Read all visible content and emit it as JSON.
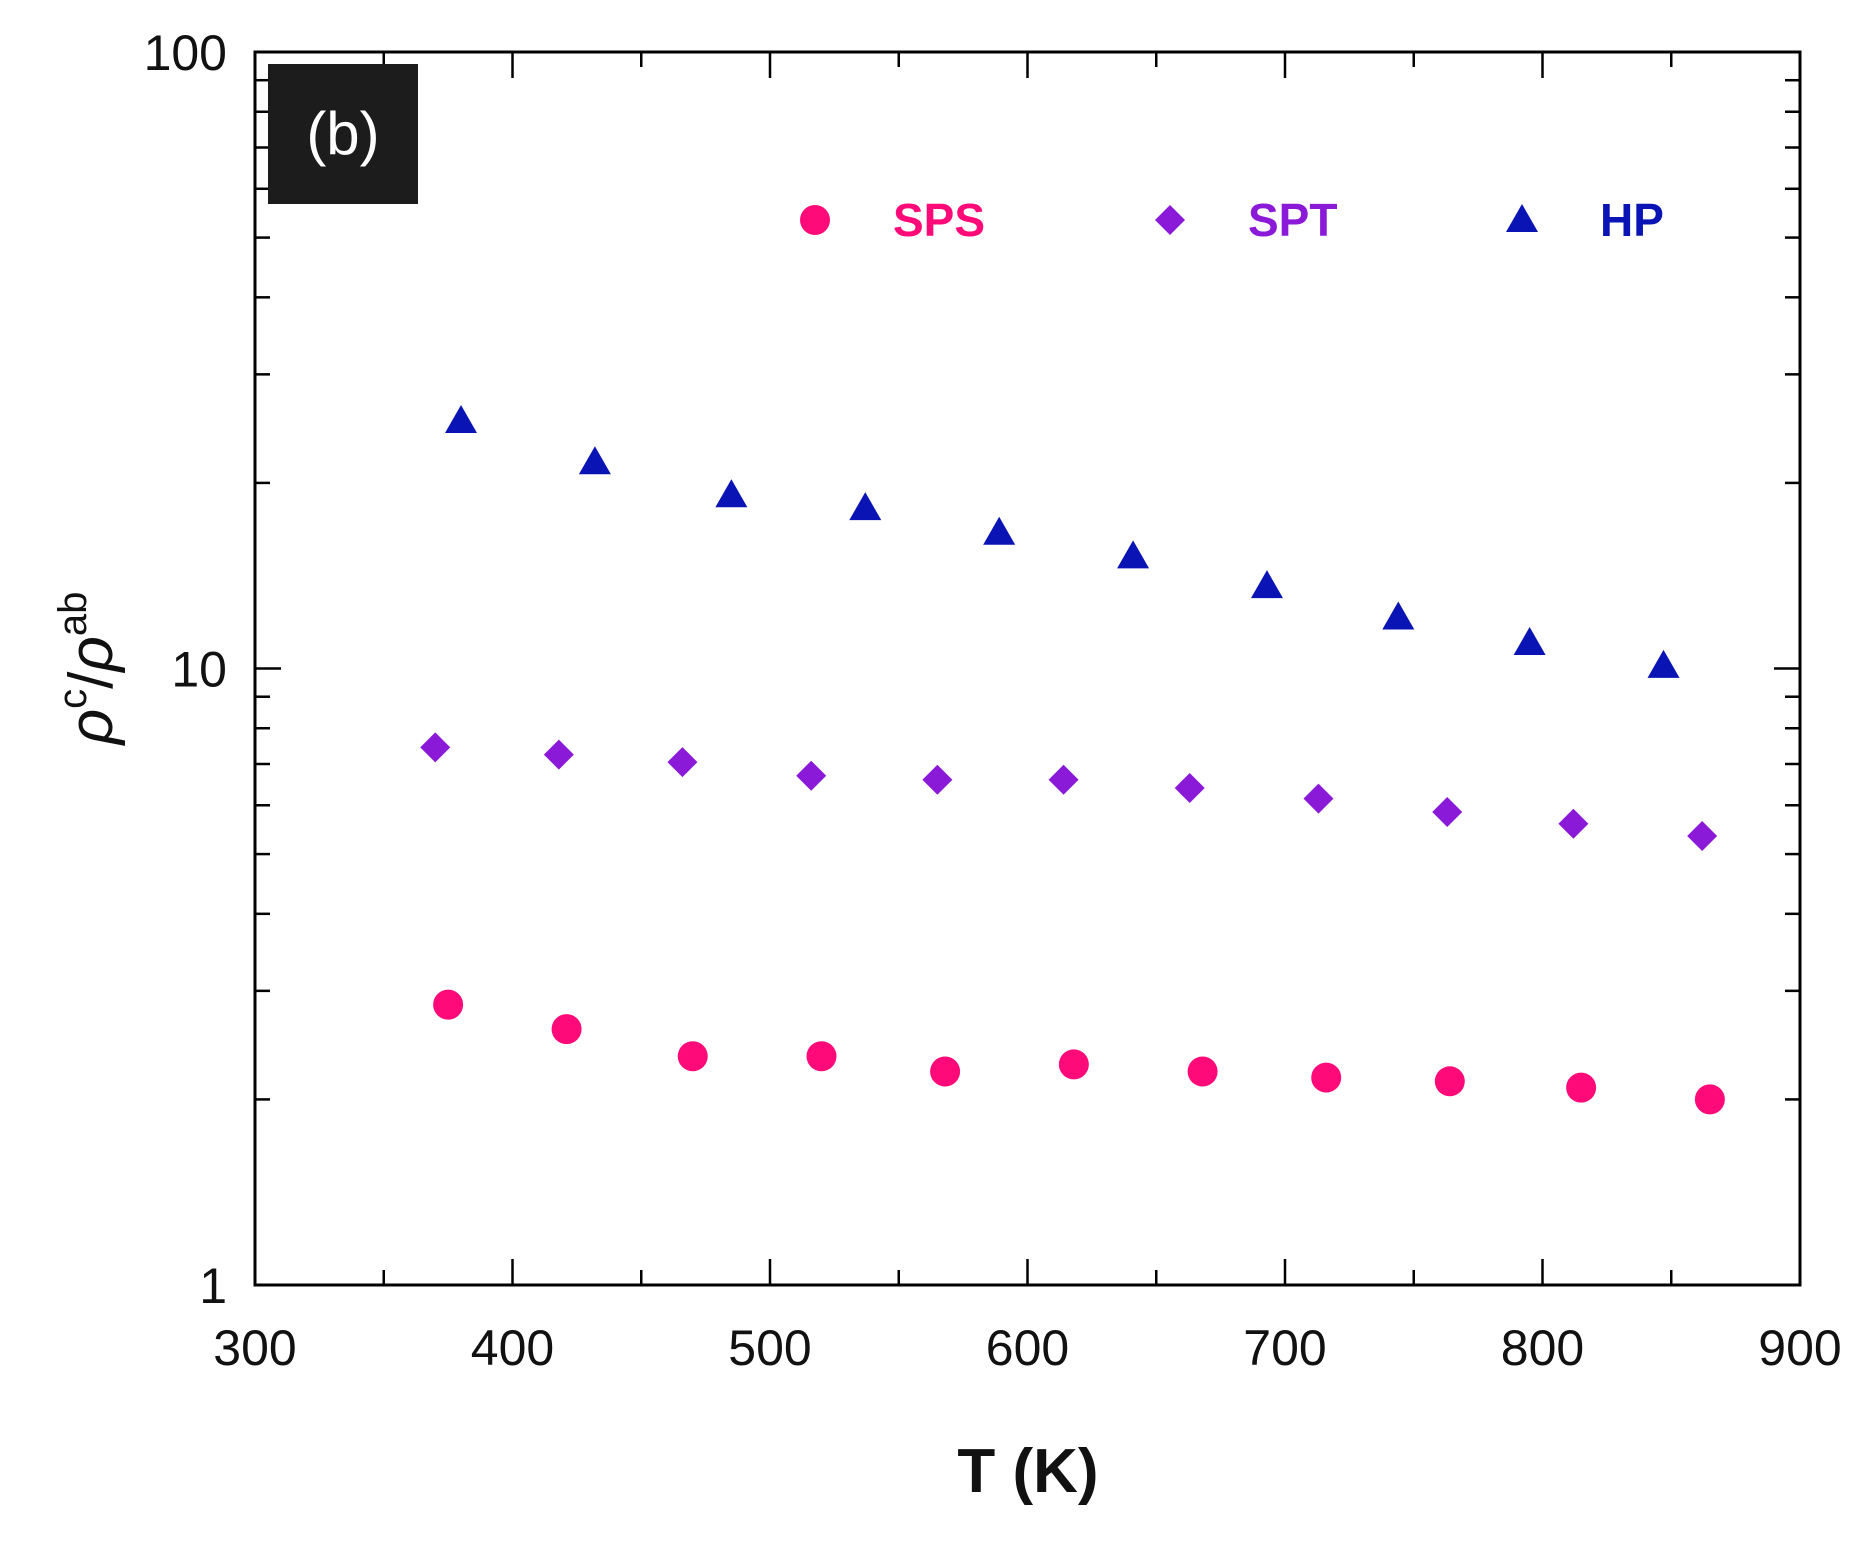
{
  "chart_data": {
    "type": "scatter",
    "panel_label": "(b)",
    "xlabel": "T (K)",
    "ylabel": {
      "base": "ρ",
      "numerator_sup": "c",
      "separator": "/",
      "denominator_sup": "ab"
    },
    "xlim": [
      300,
      900
    ],
    "ylim": [
      1,
      100
    ],
    "yscale": "log",
    "x_ticks": [
      300,
      400,
      500,
      600,
      700,
      800,
      900
    ],
    "x_tick_labels": [
      "300",
      "400",
      "500",
      "600",
      "700",
      "800",
      "900"
    ],
    "y_ticks": [
      1,
      10,
      100
    ],
    "y_tick_labels": [
      "1",
      "10",
      "100"
    ],
    "legend_position": "top-right",
    "series": [
      {
        "name": "SPS",
        "marker": "circle",
        "color": "#ff0a78",
        "x": [
          375,
          421,
          470,
          520,
          568,
          618,
          668,
          716,
          764,
          815,
          865
        ],
        "y": [
          2.85,
          2.6,
          2.35,
          2.35,
          2.22,
          2.28,
          2.22,
          2.17,
          2.14,
          2.09,
          2.0
        ]
      },
      {
        "name": "SPT",
        "marker": "diamond",
        "color": "#8a1ad8",
        "x": [
          370,
          418,
          466,
          516,
          565,
          614,
          663,
          713,
          763,
          812,
          862
        ],
        "y": [
          7.45,
          7.25,
          7.05,
          6.7,
          6.6,
          6.6,
          6.4,
          6.15,
          5.85,
          5.6,
          5.35
        ]
      },
      {
        "name": "HP",
        "marker": "triangle",
        "color": "#0a14b4",
        "x": [
          380,
          432,
          485,
          537,
          589,
          641,
          693,
          744,
          795,
          847
        ],
        "y": [
          25.2,
          21.6,
          19.1,
          18.2,
          16.6,
          15.2,
          13.6,
          12.1,
          11.0,
          10.1
        ]
      }
    ]
  }
}
